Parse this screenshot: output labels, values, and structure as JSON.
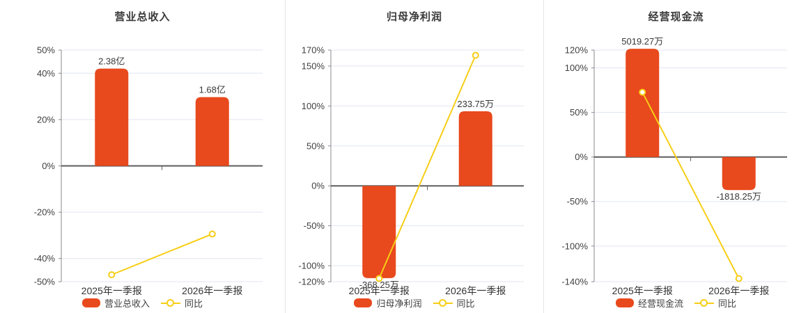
{
  "colors": {
    "background": "#FFFFFF",
    "bar": "#E8491D",
    "line": "#F7CE17",
    "grid": "#E0E5F0",
    "zero_axis": "#5E5E5E",
    "y_axis": "#8A8A8A",
    "tick_text": "#404040",
    "value_text": "#383838",
    "category_text": "#333333",
    "title_text": "#3A3A3A",
    "legend_text": "#404040",
    "divider": "#E4E4E4",
    "marker_fill": "#FFFFFF"
  },
  "chart_data": [
    {
      "type": "bar+line",
      "title": "营业总收入",
      "categories": [
        "2025年一季报",
        "2026年一季报"
      ],
      "bar_series": {
        "name": "营业总收入",
        "value_labels": [
          "2.38亿",
          "1.68亿"
        ],
        "plot_pct": [
          42.0,
          29.7
        ]
      },
      "line_series": {
        "name": "同比",
        "values_pct": [
          -47.0,
          -29.4
        ]
      },
      "y_axis": {
        "min": -50,
        "max": 50,
        "unit": "%",
        "ticks": [
          50,
          40,
          20,
          0,
          -20,
          -40,
          -50
        ]
      },
      "grid": true,
      "legend_position": "bottom"
    },
    {
      "type": "bar+line",
      "title": "归母净利润",
      "categories": [
        "2025年一季报",
        "2026年一季报"
      ],
      "bar_series": {
        "name": "归母净利润",
        "value_labels": [
          "-368.25万",
          "233.75万"
        ],
        "plot_pct": [
          -115.5,
          93.4
        ]
      },
      "line_series": {
        "name": "同比",
        "values_pct": [
          -116.0,
          163.5
        ]
      },
      "y_axis": {
        "min": -120,
        "max": 170,
        "unit": "%",
        "ticks": [
          170,
          150,
          100,
          50,
          0,
          -50,
          -100,
          -120
        ]
      },
      "grid": true,
      "legend_position": "bottom"
    },
    {
      "type": "bar+line",
      "title": "经营现金流",
      "categories": [
        "2025年一季报",
        "2026年一季报"
      ],
      "bar_series": {
        "name": "经营现金流",
        "value_labels": [
          "5019.27万",
          "-1818.25万"
        ],
        "plot_pct": [
          121.5,
          -37.1
        ]
      },
      "line_series": {
        "name": "同比",
        "values_pct": [
          72.7,
          -136.5
        ]
      },
      "y_axis": {
        "min": -140,
        "max": 120,
        "unit": "%",
        "ticks": [
          120,
          100,
          50,
          0,
          -50,
          -100,
          -140
        ]
      },
      "grid": true,
      "legend_position": "bottom"
    }
  ]
}
